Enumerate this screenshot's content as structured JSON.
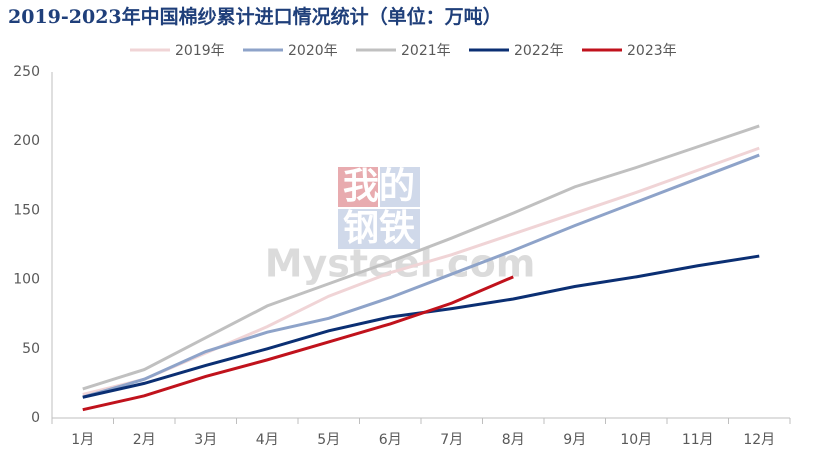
{
  "chart_data": {
    "type": "line",
    "title": "2019-2023年中国棉纱累计进口情况统计（单位：万吨）",
    "watermark": [
      "我的",
      "钢铁",
      "Mysteel.com"
    ],
    "categories": [
      "1月",
      "2月",
      "3月",
      "4月",
      "5月",
      "6月",
      "7月",
      "8月",
      "9月",
      "10月",
      "11月",
      "12月"
    ],
    "series": [
      {
        "name": "2019年",
        "color": "#f0d4d6",
        "values": [
          17,
          28,
          47,
          66,
          88,
          105,
          118,
          133,
          148,
          163,
          179,
          195
        ]
      },
      {
        "name": "2020年",
        "color": "#8ea3c9",
        "values": [
          15,
          28,
          48,
          62,
          72,
          87,
          104,
          121,
          139,
          156,
          173,
          190
        ]
      },
      {
        "name": "2021年",
        "color": "#c0c0c0",
        "values": [
          21,
          35,
          58,
          81,
          97,
          113,
          130,
          148,
          167,
          181,
          196,
          211
        ]
      },
      {
        "name": "2022年",
        "color": "#0b2f73",
        "values": [
          15,
          25,
          38,
          50,
          63,
          73,
          79,
          86,
          95,
          102,
          110,
          117
        ]
      },
      {
        "name": "2023年",
        "color": "#c0121c",
        "values": [
          6,
          16,
          30,
          42,
          55,
          68,
          83,
          102,
          null,
          null,
          null,
          null
        ]
      }
    ],
    "ylim": [
      0,
      250
    ],
    "yticks": [
      0,
      50,
      100,
      150,
      200,
      250
    ],
    "grid": false
  }
}
